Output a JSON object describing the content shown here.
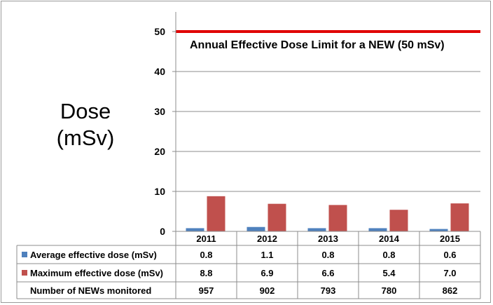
{
  "chart_data": {
    "type": "bar",
    "ylabel": [
      "Dose",
      "(mSv)"
    ],
    "ylim": [
      0,
      50
    ],
    "yticks": [
      0,
      10,
      20,
      30,
      40,
      50
    ],
    "grid": true,
    "categories": [
      "2011",
      "2012",
      "2013",
      "2014",
      "2015"
    ],
    "series": [
      {
        "name": "Average effective dose (mSv)",
        "color": "#4f81bd",
        "values": [
          0.8,
          1.1,
          0.8,
          0.8,
          0.6
        ],
        "labels": [
          "0.8",
          "1.1",
          "0.8",
          "0.8",
          "0.6"
        ]
      },
      {
        "name": "Maximum effective dose (mSv)",
        "color": "#c0504d",
        "values": [
          8.8,
          6.9,
          6.6,
          5.4,
          7.0
        ],
        "labels": [
          "8.8",
          "6.9",
          "6.6",
          "5.4",
          "7.0"
        ]
      }
    ],
    "table_extra_rows": [
      {
        "name": "Number of NEWs monitored",
        "values": [
          "957",
          "902",
          "793",
          "780",
          "862"
        ]
      }
    ],
    "reference_line": {
      "value": 50,
      "color": "#e00000",
      "label": "Annual Effective Dose Limit for a NEW (50 mSv)"
    }
  }
}
